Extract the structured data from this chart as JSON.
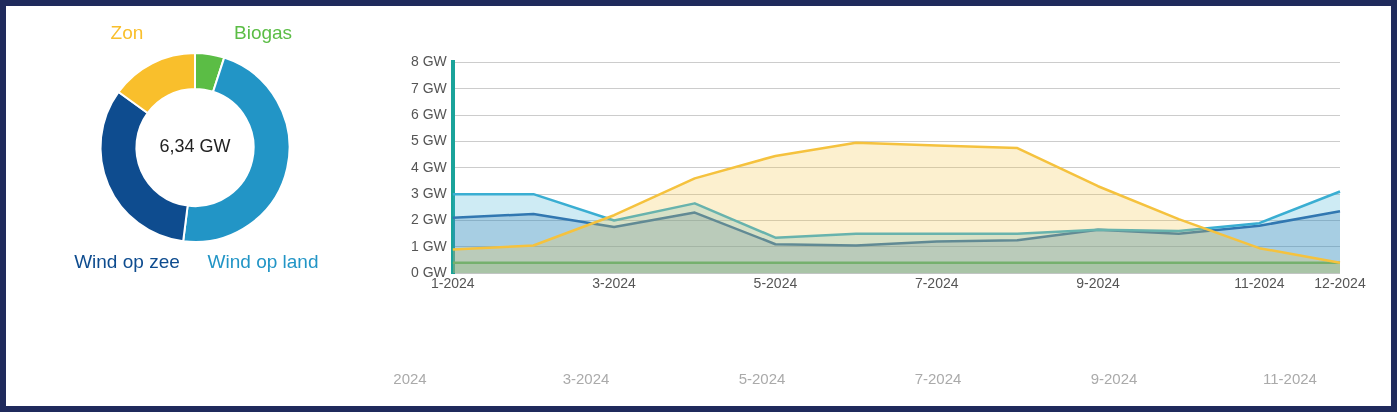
{
  "chart_data": [
    {
      "type": "donut",
      "categories": [
        "Biogas",
        "Wind op land",
        "Wind op zee",
        "Zon"
      ],
      "values": [
        5,
        47,
        33,
        15
      ],
      "colors": [
        "#5bbd45",
        "#2295c6",
        "#0e4c8f",
        "#f9bf2c"
      ],
      "annotations": [
        "6,34 GW"
      ]
    },
    {
      "type": "area",
      "categories": [
        "1-2024",
        null,
        "3-2024",
        null,
        "5-2024",
        null,
        "7-2024",
        null,
        "9-2024",
        null,
        "11-2024",
        "12-2024"
      ],
      "series": [
        {
          "color": "#f5c23e",
          "values": [
            0.9,
            1.05,
            2.2,
            3.6,
            4.45,
            4.95,
            4.85,
            4.75,
            3.3,
            2.05,
            0.95,
            0.4
          ]
        },
        {
          "color": "#3aaed2",
          "values": [
            3.0,
            3.0,
            2.0,
            2.65,
            1.35,
            1.5,
            1.5,
            1.5,
            1.65,
            1.6,
            1.9,
            3.1
          ]
        },
        {
          "color": "#2e65a6",
          "values": [
            2.1,
            2.25,
            1.75,
            2.3,
            1.1,
            1.05,
            1.2,
            1.25,
            1.65,
            1.5,
            1.8,
            2.35
          ]
        },
        {
          "color": "#5cbf4a",
          "values": [
            0.4,
            0.4,
            0.4,
            0.4,
            0.4,
            0.4,
            0.4,
            0.4,
            0.4,
            0.4,
            0.4,
            0.4
          ]
        }
      ],
      "ylim": [
        0,
        8
      ],
      "yticks": [
        {
          "value": 0,
          "label": "0 GW"
        },
        {
          "value": 1,
          "label": "1 GW"
        },
        {
          "value": 2,
          "label": "2 GW"
        },
        {
          "value": 3,
          "label": "3 GW"
        },
        {
          "value": 4,
          "label": "4 GW"
        },
        {
          "value": 5,
          "label": "5 GW"
        },
        {
          "value": 6,
          "label": "6 GW"
        },
        {
          "value": 7,
          "label": "7 GW"
        },
        {
          "value": 8,
          "label": "8 GW"
        }
      ],
      "grid": "y",
      "legend": false,
      "marker": "none"
    },
    {
      "type": "other",
      "annotations": [
        "2024",
        "3-2024",
        "5-2024",
        "7-2024",
        "9-2024",
        "11-2024"
      ]
    }
  ]
}
